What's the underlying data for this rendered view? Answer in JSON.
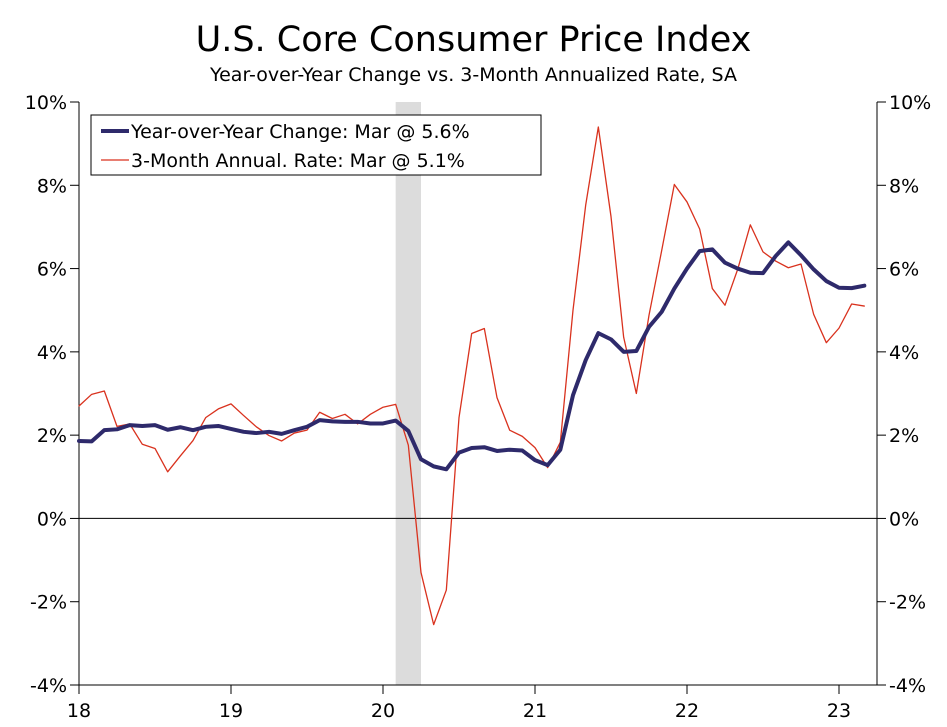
{
  "chart_data": {
    "type": "line",
    "title": "U.S. Core Consumer Price Index",
    "subtitle": "Year-over-Year Change vs. 3-Month Annualized Rate, SA",
    "xlabel": "",
    "ylabel": "",
    "ylim": [
      -4,
      10
    ],
    "yticks": [
      -4,
      -2,
      0,
      2,
      4,
      6,
      8,
      10
    ],
    "ytick_labels": [
      "-4%",
      "-2%",
      "0%",
      "2%",
      "4%",
      "6%",
      "8%",
      "10%"
    ],
    "xlim": [
      0,
      63
    ],
    "xticks": [
      0,
      12,
      24,
      36,
      48,
      60
    ],
    "xtick_labels": [
      "18",
      "19",
      "20",
      "21",
      "22",
      "23"
    ],
    "recession_shading": {
      "start": 25,
      "end": 27
    },
    "legend": {
      "position": "top-left"
    },
    "series": [
      {
        "name": "Year-over-Year Change: Mar @ 5.6%",
        "color": "#2e2a6b",
        "style": "thick",
        "values": [
          1.86,
          1.85,
          2.12,
          2.14,
          2.24,
          2.22,
          2.24,
          2.13,
          2.19,
          2.12,
          2.2,
          2.22,
          2.15,
          2.08,
          2.05,
          2.08,
          2.03,
          2.12,
          2.2,
          2.36,
          2.33,
          2.32,
          2.32,
          2.28,
          2.28,
          2.35,
          2.1,
          1.42,
          1.25,
          1.18,
          1.58,
          1.69,
          1.71,
          1.62,
          1.65,
          1.63,
          1.4,
          1.28,
          1.65,
          2.96,
          3.8,
          4.45,
          4.3,
          4.0,
          4.02,
          4.6,
          4.96,
          5.52,
          6.0,
          6.42,
          6.46,
          6.14,
          6.0,
          5.9,
          5.89,
          6.3,
          6.63,
          6.32,
          5.98,
          5.7,
          5.54,
          5.53,
          5.59
        ]
      },
      {
        "name": "3-Month Annual. Rate: Mar @ 5.1%",
        "color": "#d9321e",
        "style": "thin",
        "values": [
          2.7,
          2.98,
          3.06,
          2.21,
          2.27,
          1.78,
          1.68,
          1.12,
          1.5,
          1.87,
          2.42,
          2.63,
          2.75,
          2.47,
          2.2,
          1.99,
          1.86,
          2.05,
          2.12,
          2.55,
          2.4,
          2.5,
          2.27,
          2.5,
          2.67,
          2.74,
          1.76,
          -1.3,
          -2.55,
          -1.72,
          2.42,
          4.44,
          4.56,
          2.9,
          2.12,
          1.97,
          1.7,
          1.22,
          1.83,
          5.0,
          7.52,
          9.4,
          7.25,
          4.35,
          3.0,
          4.88,
          6.43,
          8.02,
          7.6,
          6.95,
          5.52,
          5.12,
          5.98,
          7.05,
          6.4,
          6.18,
          6.02,
          6.11,
          4.9,
          4.22,
          4.57,
          5.15,
          5.1
        ]
      }
    ]
  }
}
